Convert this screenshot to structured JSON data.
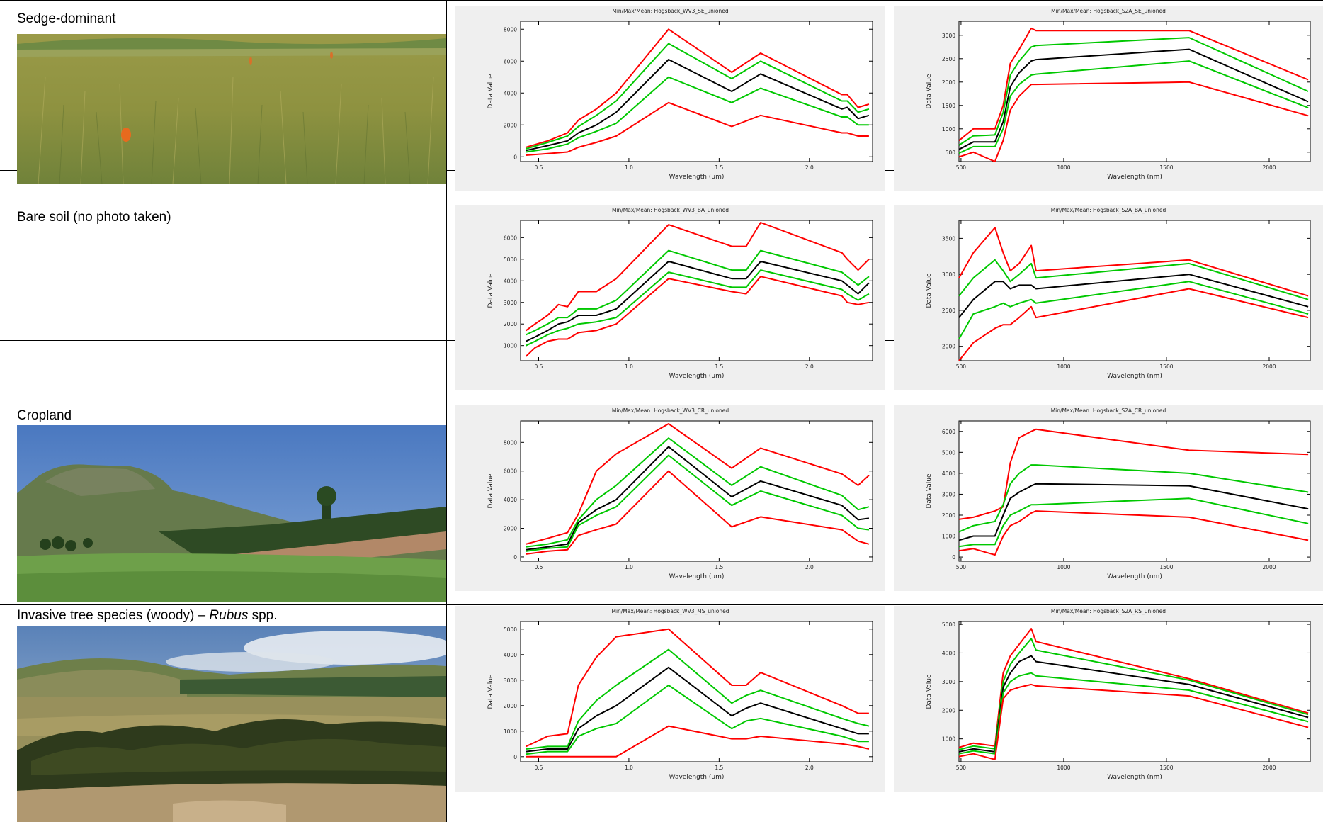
{
  "rows": [
    {
      "label": "Sedge-dominant",
      "italic": "",
      "suffix": "",
      "photo": "grassland"
    },
    {
      "label": "Bare soil (no photo taken)",
      "italic": "",
      "suffix": "",
      "photo": "none"
    },
    {
      "label": "Cropland",
      "italic": "",
      "suffix": "",
      "photo": "cropland"
    },
    {
      "label": "Invasive tree species (woody) – ",
      "italic": "Rubus",
      "suffix": " spp.",
      "photo": "shrubs"
    }
  ],
  "colors": {
    "max_min": "#ff0000",
    "std": "#00c800",
    "mean": "#000000",
    "panel_bg": "#efefef"
  },
  "chart_data": [
    {
      "type": "line",
      "title": "Min/Max/Mean: Hogsback_WV3_SE_unioned",
      "xlabel": "Wavelength (um)",
      "ylabel": "Data Value",
      "xlim": [
        0.4,
        2.35
      ],
      "ylim": [
        -300,
        8500
      ],
      "xticks": [
        0.5,
        1.0,
        1.5,
        2.0
      ],
      "xtick_labels": [
        "0.5",
        "1.0",
        "1.5",
        "2.0"
      ],
      "yticks": [
        0,
        2000,
        4000,
        6000,
        8000
      ],
      "ytick_labels": [
        "0",
        "2000",
        "4000",
        "6000",
        "8000"
      ],
      "x": [
        0.43,
        0.55,
        0.66,
        0.72,
        0.82,
        0.93,
        1.22,
        1.57,
        1.73,
        2.18,
        2.21,
        2.27,
        2.33
      ],
      "series": [
        {
          "color": "red",
          "values": [
            600,
            1000,
            1500,
            2300,
            3000,
            4000,
            8000,
            5300,
            6500,
            3900,
            3900,
            3100,
            3300
          ]
        },
        {
          "color": "green",
          "values": [
            500,
            900,
            1300,
            1900,
            2600,
            3500,
            7100,
            4900,
            6000,
            3500,
            3500,
            2800,
            3000
          ]
        },
        {
          "color": "black",
          "values": [
            400,
            700,
            1000,
            1500,
            2000,
            2800,
            6100,
            4100,
            5200,
            3000,
            3100,
            2400,
            2600
          ]
        },
        {
          "color": "green",
          "values": [
            300,
            500,
            800,
            1200,
            1600,
            2100,
            5000,
            3400,
            4300,
            2500,
            2500,
            2000,
            2000
          ]
        },
        {
          "color": "red",
          "values": [
            100,
            200,
            300,
            600,
            900,
            1300,
            3400,
            1900,
            2600,
            1500,
            1500,
            1300,
            1300
          ]
        }
      ]
    },
    {
      "type": "line",
      "title": "Min/Max/Mean: Hogsback_S2A_SE_unioned",
      "xlabel": "Wavelength (nm)",
      "ylabel": "Data Value",
      "xlim": [
        490,
        2200
      ],
      "ylim": [
        300,
        3300
      ],
      "xticks": [
        500,
        1000,
        1500,
        2000
      ],
      "xtick_labels": [
        "500",
        "1000",
        "1500",
        "2000"
      ],
      "yticks": [
        500,
        1000,
        1500,
        2000,
        2500,
        3000
      ],
      "ytick_labels": [
        "500",
        "1000",
        "1500",
        "2000",
        "2500",
        "3000"
      ],
      "x": [
        490,
        560,
        665,
        705,
        740,
        783,
        842,
        865,
        1610,
        2190
      ],
      "series": [
        {
          "color": "red",
          "values": [
            750,
            1000,
            1000,
            1500,
            2400,
            2700,
            3150,
            3100,
            3100,
            2050
          ]
        },
        {
          "color": "green",
          "values": [
            650,
            850,
            870,
            1350,
            2150,
            2450,
            2750,
            2780,
            2950,
            1800
          ]
        },
        {
          "color": "black",
          "values": [
            560,
            720,
            720,
            1150,
            1900,
            2200,
            2450,
            2480,
            2700,
            1580
          ]
        },
        {
          "color": "green",
          "values": [
            480,
            620,
            620,
            1000,
            1700,
            1950,
            2150,
            2170,
            2450,
            1450
          ]
        },
        {
          "color": "red",
          "values": [
            400,
            500,
            300,
            750,
            1400,
            1700,
            1950,
            1950,
            2000,
            1280
          ]
        }
      ]
    },
    {
      "type": "line",
      "title": "Min/Max/Mean: Hogsback_WV3_BA_unioned",
      "xlabel": "Wavelength (um)",
      "ylabel": "Data Value",
      "xlim": [
        0.4,
        2.35
      ],
      "ylim": [
        300,
        6800
      ],
      "xticks": [
        0.5,
        1.0,
        1.5,
        2.0
      ],
      "xtick_labels": [
        "0.5",
        "1.0",
        "1.5",
        "2.0"
      ],
      "yticks": [
        1000,
        2000,
        3000,
        4000,
        5000,
        6000
      ],
      "ytick_labels": [
        "1000",
        "2000",
        "3000",
        "4000",
        "5000",
        "6000"
      ],
      "x": [
        0.43,
        0.48,
        0.55,
        0.61,
        0.66,
        0.72,
        0.82,
        0.93,
        1.22,
        1.57,
        1.65,
        1.73,
        2.18,
        2.21,
        2.27,
        2.33
      ],
      "series": [
        {
          "color": "red",
          "values": [
            1700,
            2000,
            2400,
            2900,
            2800,
            3500,
            3500,
            4100,
            6600,
            5600,
            5600,
            6700,
            5300,
            5000,
            4500,
            5000
          ]
        },
        {
          "color": "green",
          "values": [
            1500,
            1700,
            2000,
            2300,
            2300,
            2700,
            2700,
            3100,
            5400,
            4500,
            4500,
            5400,
            4400,
            4200,
            3800,
            4200
          ]
        },
        {
          "color": "black",
          "values": [
            1200,
            1400,
            1700,
            2000,
            2100,
            2400,
            2400,
            2700,
            4900,
            4100,
            4100,
            4900,
            4000,
            3800,
            3400,
            3900
          ]
        },
        {
          "color": "green",
          "values": [
            1000,
            1200,
            1500,
            1700,
            1800,
            2000,
            2100,
            2300,
            4400,
            3700,
            3700,
            4500,
            3600,
            3400,
            3100,
            3400
          ]
        },
        {
          "color": "red",
          "values": [
            500,
            900,
            1200,
            1300,
            1300,
            1600,
            1700,
            2000,
            4100,
            3500,
            3400,
            4200,
            3300,
            3000,
            2900,
            3000
          ]
        }
      ]
    },
    {
      "type": "line",
      "title": "Min/Max/Mean: Hogsback_S2A_BA_unioned",
      "xlabel": "Wavelength (nm)",
      "ylabel": "Data Value",
      "xlim": [
        490,
        2200
      ],
      "ylim": [
        1800,
        3750
      ],
      "xticks": [
        500,
        1000,
        1500,
        2000
      ],
      "xtick_labels": [
        "500",
        "1000",
        "1500",
        "2000"
      ],
      "yticks": [
        2000,
        2500,
        3000,
        3500
      ],
      "ytick_labels": [
        "2000",
        "2500",
        "3000",
        "3500"
      ],
      "x": [
        490,
        560,
        665,
        705,
        740,
        783,
        842,
        865,
        1610,
        2190
      ],
      "series": [
        {
          "color": "red",
          "values": [
            2950,
            3300,
            3650,
            3300,
            3050,
            3150,
            3400,
            3050,
            3200,
            2700
          ]
        },
        {
          "color": "green",
          "values": [
            2700,
            2950,
            3200,
            3050,
            2900,
            3000,
            3150,
            2950,
            3150,
            2650
          ]
        },
        {
          "color": "black",
          "values": [
            2400,
            2650,
            2900,
            2900,
            2800,
            2850,
            2850,
            2800,
            3000,
            2550
          ]
        },
        {
          "color": "green",
          "values": [
            2100,
            2450,
            2550,
            2600,
            2550,
            2600,
            2650,
            2600,
            2900,
            2450
          ]
        },
        {
          "color": "red",
          "values": [
            1800,
            2050,
            2250,
            2300,
            2300,
            2400,
            2550,
            2400,
            2800,
            2400
          ]
        }
      ]
    },
    {
      "type": "line",
      "title": "Min/Max/Mean: Hogsback_WV3_CR_unioned",
      "xlabel": "Wavelength (um)",
      "ylabel": "Data Value",
      "xlim": [
        0.4,
        2.35
      ],
      "ylim": [
        -300,
        9500
      ],
      "xticks": [
        0.5,
        1.0,
        1.5,
        2.0
      ],
      "xtick_labels": [
        "0.5",
        "1.0",
        "1.5",
        "2.0"
      ],
      "yticks": [
        0,
        2000,
        4000,
        6000,
        8000
      ],
      "ytick_labels": [
        "0",
        "2000",
        "4000",
        "6000",
        "8000"
      ],
      "x": [
        0.43,
        0.55,
        0.66,
        0.72,
        0.82,
        0.93,
        1.22,
        1.57,
        1.73,
        2.18,
        2.27,
        2.33
      ],
      "series": [
        {
          "color": "red",
          "values": [
            900,
            1300,
            1700,
            3000,
            6000,
            7200,
            9300,
            6200,
            7600,
            5800,
            5000,
            5700
          ]
        },
        {
          "color": "green",
          "values": [
            700,
            900,
            1200,
            2600,
            4000,
            5000,
            8300,
            5000,
            6300,
            4300,
            3300,
            3500
          ]
        },
        {
          "color": "black",
          "values": [
            500,
            700,
            900,
            2400,
            3300,
            4000,
            7700,
            4200,
            5300,
            3600,
            2600,
            2700
          ]
        },
        {
          "color": "green",
          "values": [
            400,
            600,
            700,
            2200,
            2900,
            3500,
            7100,
            3600,
            4600,
            2900,
            2000,
            1900
          ]
        },
        {
          "color": "red",
          "values": [
            200,
            400,
            500,
            1500,
            1900,
            2300,
            6000,
            2100,
            2800,
            1900,
            1100,
            900
          ]
        }
      ]
    },
    {
      "type": "line",
      "title": "Min/Max/Mean: Hogsback_S2A_CR_unioned",
      "xlabel": "Wavelength (nm)",
      "ylabel": "Data Value",
      "xlim": [
        490,
        2200
      ],
      "ylim": [
        -200,
        6500
      ],
      "xticks": [
        500,
        1000,
        1500,
        2000
      ],
      "xtick_labels": [
        "500",
        "1000",
        "1500",
        "2000"
      ],
      "yticks": [
        0,
        1000,
        2000,
        3000,
        4000,
        5000,
        6000
      ],
      "ytick_labels": [
        "0",
        "1000",
        "2000",
        "3000",
        "4000",
        "5000",
        "6000"
      ],
      "x": [
        490,
        560,
        665,
        705,
        740,
        783,
        842,
        865,
        1610,
        2190
      ],
      "series": [
        {
          "color": "red",
          "values": [
            1800,
            1900,
            2200,
            2400,
            4500,
            5700,
            6000,
            6100,
            5100,
            4900
          ]
        },
        {
          "color": "green",
          "values": [
            1200,
            1500,
            1700,
            2500,
            3500,
            4000,
            4400,
            4400,
            4000,
            3100
          ]
        },
        {
          "color": "black",
          "values": [
            800,
            1000,
            1000,
            2000,
            2800,
            3100,
            3400,
            3500,
            3400,
            2300
          ]
        },
        {
          "color": "green",
          "values": [
            500,
            600,
            600,
            1500,
            2000,
            2200,
            2500,
            2500,
            2800,
            1600
          ]
        },
        {
          "color": "red",
          "values": [
            300,
            400,
            100,
            1000,
            1500,
            1700,
            2100,
            2200,
            1900,
            800
          ]
        }
      ]
    },
    {
      "type": "line",
      "title": "Min/Max/Mean: Hogsback_WV3_MS_unioned",
      "xlabel": "Wavelength (um)",
      "ylabel": "Data Value",
      "xlim": [
        0.4,
        2.35
      ],
      "ylim": [
        -200,
        5300
      ],
      "xticks": [
        0.5,
        1.0,
        1.5,
        2.0
      ],
      "xtick_labels": [
        "0.5",
        "1.0",
        "1.5",
        "2.0"
      ],
      "yticks": [
        0,
        1000,
        2000,
        3000,
        4000,
        5000
      ],
      "ytick_labels": [
        "0",
        "1000",
        "2000",
        "3000",
        "4000",
        "5000"
      ],
      "x": [
        0.43,
        0.55,
        0.66,
        0.72,
        0.82,
        0.93,
        1.22,
        1.57,
        1.65,
        1.73,
        2.18,
        2.27,
        2.33
      ],
      "series": [
        {
          "color": "red",
          "values": [
            400,
            800,
            900,
            2800,
            3900,
            4700,
            5000,
            2800,
            2800,
            3300,
            2000,
            1700,
            1700
          ]
        },
        {
          "color": "green",
          "values": [
            300,
            400,
            400,
            1400,
            2200,
            2800,
            4200,
            2100,
            2400,
            2600,
            1500,
            1300,
            1200
          ]
        },
        {
          "color": "black",
          "values": [
            200,
            300,
            300,
            1100,
            1600,
            2000,
            3500,
            1600,
            1900,
            2100,
            1100,
            900,
            900
          ]
        },
        {
          "color": "green",
          "values": [
            100,
            200,
            200,
            800,
            1100,
            1300,
            2800,
            1100,
            1400,
            1500,
            800,
            600,
            600
          ]
        },
        {
          "color": "red",
          "values": [
            0,
            0,
            0,
            0,
            0,
            0,
            1200,
            700,
            700,
            800,
            500,
            400,
            300
          ]
        }
      ]
    },
    {
      "type": "line",
      "title": "Min/Max/Mean: Hogsback_S2A_RS_unioned",
      "xlabel": "Wavelength (nm)",
      "ylabel": "Data Value",
      "xlim": [
        490,
        2200
      ],
      "ylim": [
        200,
        5100
      ],
      "xticks": [
        500,
        1000,
        1500,
        2000
      ],
      "xtick_labels": [
        "500",
        "1000",
        "1500",
        "2000"
      ],
      "yticks": [
        1000,
        2000,
        3000,
        4000,
        5000
      ],
      "ytick_labels": [
        "1000",
        "2000",
        "3000",
        "4000",
        "5000"
      ],
      "x": [
        490,
        560,
        665,
        705,
        740,
        783,
        842,
        865,
        1610,
        2190
      ],
      "series": [
        {
          "color": "red",
          "values": [
            700,
            850,
            750,
            3300,
            3900,
            4300,
            4850,
            4400,
            3100,
            1900
          ]
        },
        {
          "color": "green",
          "values": [
            620,
            750,
            650,
            3000,
            3600,
            4000,
            4500,
            4100,
            3050,
            1850
          ]
        },
        {
          "color": "black",
          "values": [
            550,
            650,
            550,
            2800,
            3300,
            3700,
            3900,
            3700,
            2900,
            1750
          ]
        },
        {
          "color": "green",
          "values": [
            480,
            580,
            480,
            2600,
            3000,
            3200,
            3300,
            3200,
            2700,
            1600
          ]
        },
        {
          "color": "red",
          "values": [
            380,
            480,
            280,
            2400,
            2700,
            2800,
            2900,
            2850,
            2500,
            1400
          ]
        }
      ]
    }
  ]
}
